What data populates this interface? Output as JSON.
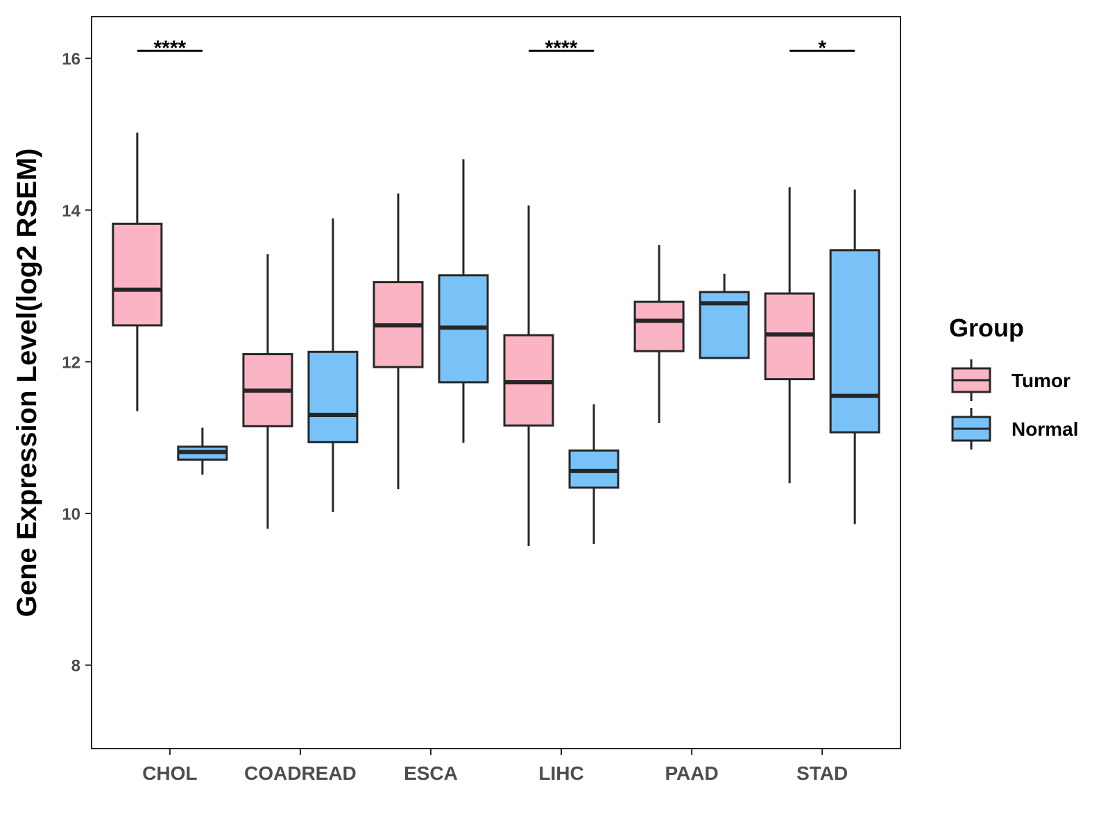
{
  "chart_data": {
    "type": "boxplot",
    "title": "",
    "xlabel": "",
    "ylabel": "Gene Expression Level(log2 RSEM)",
    "ylim": [
      6.9,
      16.55
    ],
    "yticks": [
      8,
      10,
      12,
      14,
      16
    ],
    "categories": [
      "CHOL",
      "COADREAD",
      "ESCA",
      "LIHC",
      "PAAD",
      "STAD"
    ],
    "legend": {
      "title": "Group",
      "position": "right"
    },
    "series": [
      {
        "name": "Tumor",
        "color": "#FBB4C4",
        "boxes": [
          {
            "category": "CHOL",
            "min": 11.35,
            "q1": 12.48,
            "median": 12.95,
            "q3": 13.82,
            "max": 15.02
          },
          {
            "category": "COADREAD",
            "min": 9.8,
            "q1": 11.15,
            "median": 11.62,
            "q3": 12.1,
            "max": 13.42
          },
          {
            "category": "ESCA",
            "min": 10.32,
            "q1": 11.93,
            "median": 12.48,
            "q3": 13.05,
            "max": 14.22
          },
          {
            "category": "LIHC",
            "min": 9.57,
            "q1": 11.16,
            "median": 11.73,
            "q3": 12.35,
            "max": 14.06
          },
          {
            "category": "PAAD",
            "min": 11.19,
            "q1": 12.14,
            "median": 12.54,
            "q3": 12.79,
            "max": 13.54
          },
          {
            "category": "STAD",
            "min": 10.4,
            "q1": 11.77,
            "median": 12.36,
            "q3": 12.9,
            "max": 14.3
          }
        ]
      },
      {
        "name": "Normal",
        "color": "#78C2F8",
        "boxes": [
          {
            "category": "CHOL",
            "min": 10.51,
            "q1": 10.71,
            "median": 10.81,
            "q3": 10.88,
            "max": 11.13
          },
          {
            "category": "COADREAD",
            "min": 10.02,
            "q1": 10.94,
            "median": 11.3,
            "q3": 12.13,
            "max": 13.89
          },
          {
            "category": "ESCA",
            "min": 10.93,
            "q1": 11.73,
            "median": 12.45,
            "q3": 13.14,
            "max": 14.67
          },
          {
            "category": "LIHC",
            "min": 9.6,
            "q1": 10.34,
            "median": 10.56,
            "q3": 10.83,
            "max": 11.44
          },
          {
            "category": "PAAD",
            "min": 12.05,
            "q1": 12.05,
            "median": 12.77,
            "q3": 12.92,
            "max": 13.16
          },
          {
            "category": "STAD",
            "min": 9.86,
            "q1": 11.07,
            "median": 11.55,
            "q3": 13.47,
            "max": 14.27
          }
        ]
      }
    ],
    "significance": [
      {
        "category": "CHOL",
        "label": "****",
        "y": 16.1
      },
      {
        "category": "LIHC",
        "label": "****",
        "y": 16.1
      },
      {
        "category": "STAD",
        "label": "*",
        "y": 16.1
      }
    ]
  }
}
